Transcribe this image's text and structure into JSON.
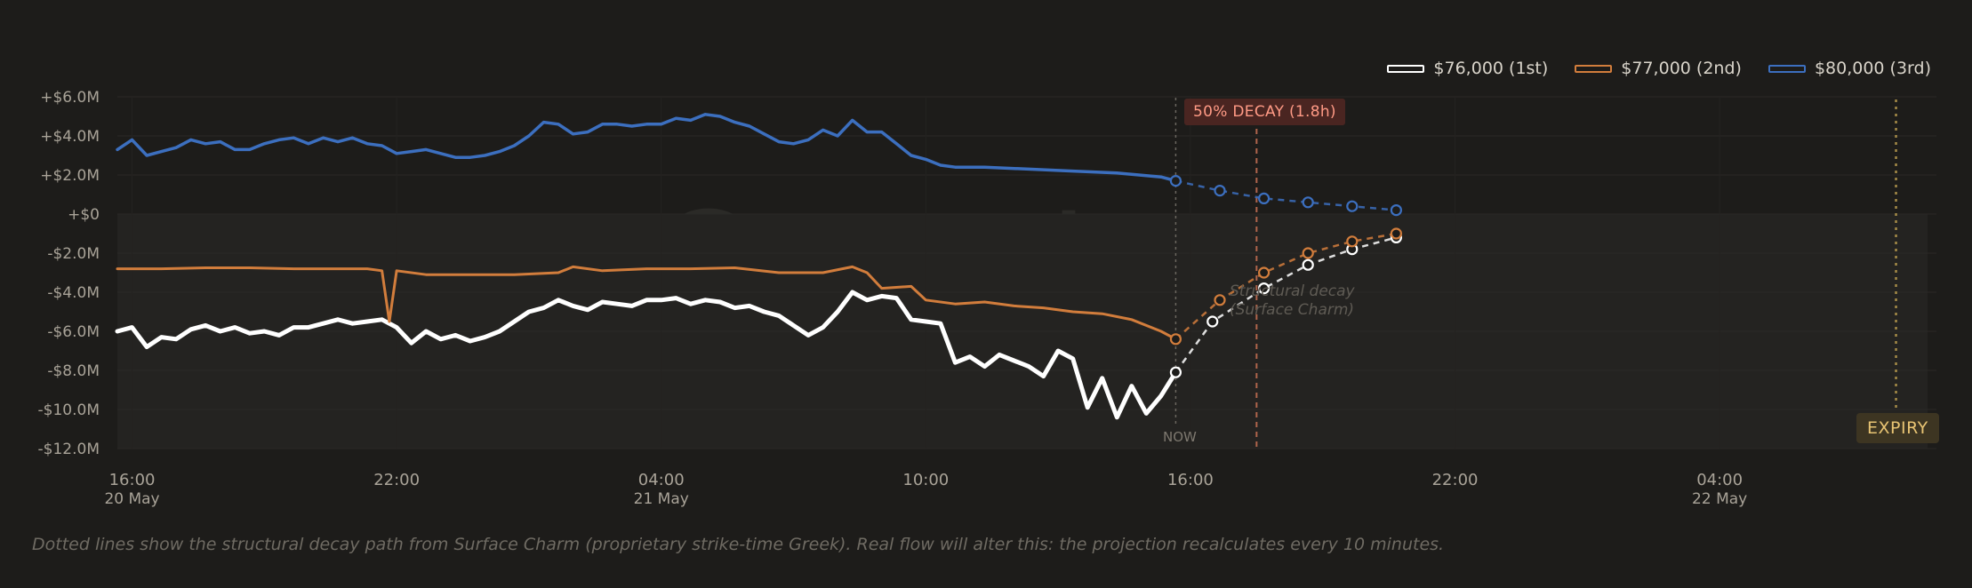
{
  "legend": {
    "items": [
      {
        "label": "$76,000 (1st)",
        "color": "#ffffff"
      },
      {
        "label": "$77,000 (2nd)",
        "color": "#d27d3c"
      },
      {
        "label": "$80,000 (3rd)",
        "color": "#3c6fbf"
      }
    ]
  },
  "watermark": "Cayø Largo",
  "annotations": {
    "decay_badge": "50% DECAY (1.8h)",
    "expiry_badge": "EXPIRY",
    "now_label": "NOW",
    "decay_note_line1": "Structural decay",
    "decay_note_line2": "(Surface Charm)"
  },
  "footnote": "Dotted lines show the structural decay path from Surface Charm (proprietary strike-time Greek). Real flow will alter this: the projection recalculates every 10 minutes.",
  "chart_data": {
    "type": "line",
    "title": "",
    "xlabel": "",
    "ylabel": "",
    "xlim": [
      "2024-05-20 15:40",
      "2024-05-22 10:40"
    ],
    "ylim": [
      -12,
      6
    ],
    "y_unit": "$M",
    "y_ticks": [
      {
        "value": 6,
        "label": "+$6.0M"
      },
      {
        "value": 4,
        "label": "+$4.0M"
      },
      {
        "value": 2,
        "label": "+$2.0M"
      },
      {
        "value": 0,
        "label": "+$0"
      },
      {
        "value": -2,
        "label": "-$2.0M"
      },
      {
        "value": -4,
        "label": "-$4.0M"
      },
      {
        "value": -6,
        "label": "-$6.0M"
      },
      {
        "value": -8,
        "label": "-$8.0M"
      },
      {
        "value": -10,
        "label": "-$10.0M"
      },
      {
        "value": -12,
        "label": "-$12.0M"
      }
    ],
    "x_ticks": [
      {
        "t": "2024-05-20 16:00",
        "label": "16:00",
        "sub": "20 May"
      },
      {
        "t": "2024-05-20 22:00",
        "label": "22:00",
        "sub": ""
      },
      {
        "t": "2024-05-21 04:00",
        "label": "04:00",
        "sub": "21 May"
      },
      {
        "t": "2024-05-21 10:00",
        "label": "10:00",
        "sub": ""
      },
      {
        "t": "2024-05-21 16:00",
        "label": "16:00",
        "sub": ""
      },
      {
        "t": "2024-05-21 22:00",
        "label": "22:00",
        "sub": ""
      },
      {
        "t": "2024-05-22 04:00",
        "label": "04:00",
        "sub": "22 May"
      }
    ],
    "markers": {
      "now": "2024-05-21 15:40",
      "half_decay": "2024-05-21 17:30",
      "expiry": "2024-05-22 08:00"
    },
    "grid": true,
    "legend_position": "top-right",
    "series": [
      {
        "name": "$76,000 (1st)",
        "color": "#ffffff",
        "points": [
          [
            "2024-05-20 15:40",
            -6.0
          ],
          [
            "2024-05-20 16:00",
            -5.8
          ],
          [
            "2024-05-20 16:20",
            -6.8
          ],
          [
            "2024-05-20 16:40",
            -6.3
          ],
          [
            "2024-05-20 17:00",
            -6.4
          ],
          [
            "2024-05-20 17:20",
            -5.9
          ],
          [
            "2024-05-20 17:40",
            -5.7
          ],
          [
            "2024-05-20 18:00",
            -6.0
          ],
          [
            "2024-05-20 18:20",
            -5.8
          ],
          [
            "2024-05-20 18:40",
            -6.1
          ],
          [
            "2024-05-20 19:00",
            -6.0
          ],
          [
            "2024-05-20 19:20",
            -6.2
          ],
          [
            "2024-05-20 19:40",
            -5.8
          ],
          [
            "2024-05-20 20:00",
            -5.8
          ],
          [
            "2024-05-20 20:20",
            -5.6
          ],
          [
            "2024-05-20 20:40",
            -5.4
          ],
          [
            "2024-05-20 21:00",
            -5.6
          ],
          [
            "2024-05-20 21:20",
            -5.5
          ],
          [
            "2024-05-20 21:40",
            -5.4
          ],
          [
            "2024-05-20 22:00",
            -5.8
          ],
          [
            "2024-05-20 22:20",
            -6.6
          ],
          [
            "2024-05-20 22:40",
            -6.0
          ],
          [
            "2024-05-20 23:00",
            -6.4
          ],
          [
            "2024-05-20 23:20",
            -6.2
          ],
          [
            "2024-05-20 23:40",
            -6.5
          ],
          [
            "2024-05-21 00:00",
            -6.3
          ],
          [
            "2024-05-21 00:20",
            -6.0
          ],
          [
            "2024-05-21 00:40",
            -5.5
          ],
          [
            "2024-05-21 01:00",
            -5.0
          ],
          [
            "2024-05-21 01:20",
            -4.8
          ],
          [
            "2024-05-21 01:40",
            -4.4
          ],
          [
            "2024-05-21 02:00",
            -4.7
          ],
          [
            "2024-05-21 02:20",
            -4.9
          ],
          [
            "2024-05-21 02:40",
            -4.5
          ],
          [
            "2024-05-21 03:00",
            -4.6
          ],
          [
            "2024-05-21 03:20",
            -4.7
          ],
          [
            "2024-05-21 03:40",
            -4.4
          ],
          [
            "2024-05-21 04:00",
            -4.4
          ],
          [
            "2024-05-21 04:20",
            -4.3
          ],
          [
            "2024-05-21 04:40",
            -4.6
          ],
          [
            "2024-05-21 05:00",
            -4.4
          ],
          [
            "2024-05-21 05:20",
            -4.5
          ],
          [
            "2024-05-21 05:40",
            -4.8
          ],
          [
            "2024-05-21 06:00",
            -4.7
          ],
          [
            "2024-05-21 06:20",
            -5.0
          ],
          [
            "2024-05-21 06:40",
            -5.2
          ],
          [
            "2024-05-21 07:00",
            -5.7
          ],
          [
            "2024-05-21 07:20",
            -6.2
          ],
          [
            "2024-05-21 07:40",
            -5.8
          ],
          [
            "2024-05-21 08:00",
            -5.0
          ],
          [
            "2024-05-21 08:20",
            -4.0
          ],
          [
            "2024-05-21 08:40",
            -4.4
          ],
          [
            "2024-05-21 09:00",
            -4.2
          ],
          [
            "2024-05-21 09:20",
            -4.3
          ],
          [
            "2024-05-21 09:40",
            -5.4
          ],
          [
            "2024-05-21 10:00",
            -5.5
          ],
          [
            "2024-05-21 10:20",
            -5.6
          ],
          [
            "2024-05-21 10:40",
            -7.6
          ],
          [
            "2024-05-21 11:00",
            -7.3
          ],
          [
            "2024-05-21 11:20",
            -7.8
          ],
          [
            "2024-05-21 11:40",
            -7.2
          ],
          [
            "2024-05-21 12:00",
            -7.5
          ],
          [
            "2024-05-21 12:20",
            -7.8
          ],
          [
            "2024-05-21 12:40",
            -8.3
          ],
          [
            "2024-05-21 13:00",
            -7.0
          ],
          [
            "2024-05-21 13:20",
            -7.4
          ],
          [
            "2024-05-21 13:40",
            -9.9
          ],
          [
            "2024-05-21 14:00",
            -8.4
          ],
          [
            "2024-05-21 14:20",
            -10.4
          ],
          [
            "2024-05-21 14:40",
            -8.8
          ],
          [
            "2024-05-21 15:00",
            -10.2
          ],
          [
            "2024-05-21 15:20",
            -9.3
          ],
          [
            "2024-05-21 15:40",
            -8.1
          ]
        ],
        "projection": [
          [
            "2024-05-21 15:40",
            -8.1
          ],
          [
            "2024-05-21 16:30",
            -5.5
          ],
          [
            "2024-05-21 17:40",
            -3.8
          ],
          [
            "2024-05-21 18:40",
            -2.6
          ],
          [
            "2024-05-21 19:40",
            -1.8
          ],
          [
            "2024-05-21 20:40",
            -1.2
          ]
        ]
      },
      {
        "name": "$77,000 (2nd)",
        "color": "#d27d3c",
        "points": [
          [
            "2024-05-20 15:40",
            -2.8
          ],
          [
            "2024-05-20 16:40",
            -2.8
          ],
          [
            "2024-05-20 17:40",
            -2.75
          ],
          [
            "2024-05-20 18:40",
            -2.75
          ],
          [
            "2024-05-20 19:40",
            -2.8
          ],
          [
            "2024-05-20 20:40",
            -2.8
          ],
          [
            "2024-05-20 21:20",
            -2.8
          ],
          [
            "2024-05-20 21:40",
            -2.9
          ],
          [
            "2024-05-20 21:50",
            -5.5
          ],
          [
            "2024-05-20 22:00",
            -2.9
          ],
          [
            "2024-05-20 22:40",
            -3.1
          ],
          [
            "2024-05-20 23:40",
            -3.1
          ],
          [
            "2024-05-21 00:40",
            -3.1
          ],
          [
            "2024-05-21 01:40",
            -3.0
          ],
          [
            "2024-05-21 02:00",
            -2.7
          ],
          [
            "2024-05-21 02:40",
            -2.9
          ],
          [
            "2024-05-21 03:40",
            -2.8
          ],
          [
            "2024-05-21 04:40",
            -2.8
          ],
          [
            "2024-05-21 05:40",
            -2.75
          ],
          [
            "2024-05-21 06:40",
            -3.0
          ],
          [
            "2024-05-21 07:40",
            -3.0
          ],
          [
            "2024-05-21 08:20",
            -2.7
          ],
          [
            "2024-05-21 08:40",
            -3.0
          ],
          [
            "2024-05-21 09:00",
            -3.8
          ],
          [
            "2024-05-21 09:40",
            -3.7
          ],
          [
            "2024-05-21 10:00",
            -4.4
          ],
          [
            "2024-05-21 10:40",
            -4.6
          ],
          [
            "2024-05-21 11:20",
            -4.5
          ],
          [
            "2024-05-21 12:00",
            -4.7
          ],
          [
            "2024-05-21 12:40",
            -4.8
          ],
          [
            "2024-05-21 13:20",
            -5.0
          ],
          [
            "2024-05-21 14:00",
            -5.1
          ],
          [
            "2024-05-21 14:40",
            -5.4
          ],
          [
            "2024-05-21 15:20",
            -6.0
          ],
          [
            "2024-05-21 15:40",
            -6.4
          ]
        ],
        "projection": [
          [
            "2024-05-21 15:40",
            -6.4
          ],
          [
            "2024-05-21 16:40",
            -4.4
          ],
          [
            "2024-05-21 17:40",
            -3.0
          ],
          [
            "2024-05-21 18:40",
            -2.0
          ],
          [
            "2024-05-21 19:40",
            -1.4
          ],
          [
            "2024-05-21 20:40",
            -1.0
          ]
        ]
      },
      {
        "name": "$80,000 (3rd)",
        "color": "#3c6fbf",
        "points": [
          [
            "2024-05-20 15:40",
            3.3
          ],
          [
            "2024-05-20 16:00",
            3.8
          ],
          [
            "2024-05-20 16:20",
            3.0
          ],
          [
            "2024-05-20 16:40",
            3.2
          ],
          [
            "2024-05-20 17:00",
            3.4
          ],
          [
            "2024-05-20 17:20",
            3.8
          ],
          [
            "2024-05-20 17:40",
            3.6
          ],
          [
            "2024-05-20 18:00",
            3.7
          ],
          [
            "2024-05-20 18:20",
            3.3
          ],
          [
            "2024-05-20 18:40",
            3.3
          ],
          [
            "2024-05-20 19:00",
            3.6
          ],
          [
            "2024-05-20 19:20",
            3.8
          ],
          [
            "2024-05-20 19:40",
            3.9
          ],
          [
            "2024-05-20 20:00",
            3.6
          ],
          [
            "2024-05-20 20:20",
            3.9
          ],
          [
            "2024-05-20 20:40",
            3.7
          ],
          [
            "2024-05-20 21:00",
            3.9
          ],
          [
            "2024-05-20 21:20",
            3.6
          ],
          [
            "2024-05-20 21:40",
            3.5
          ],
          [
            "2024-05-20 22:00",
            3.1
          ],
          [
            "2024-05-20 22:20",
            3.2
          ],
          [
            "2024-05-20 22:40",
            3.3
          ],
          [
            "2024-05-20 23:00",
            3.1
          ],
          [
            "2024-05-20 23:20",
            2.9
          ],
          [
            "2024-05-20 23:40",
            2.9
          ],
          [
            "2024-05-21 00:00",
            3.0
          ],
          [
            "2024-05-21 00:20",
            3.2
          ],
          [
            "2024-05-21 00:40",
            3.5
          ],
          [
            "2024-05-21 01:00",
            4.0
          ],
          [
            "2024-05-21 01:20",
            4.7
          ],
          [
            "2024-05-21 01:40",
            4.6
          ],
          [
            "2024-05-21 02:00",
            4.1
          ],
          [
            "2024-05-21 02:20",
            4.2
          ],
          [
            "2024-05-21 02:40",
            4.6
          ],
          [
            "2024-05-21 03:00",
            4.6
          ],
          [
            "2024-05-21 03:20",
            4.5
          ],
          [
            "2024-05-21 03:40",
            4.6
          ],
          [
            "2024-05-21 04:00",
            4.6
          ],
          [
            "2024-05-21 04:20",
            4.9
          ],
          [
            "2024-05-21 04:40",
            4.8
          ],
          [
            "2024-05-21 05:00",
            5.1
          ],
          [
            "2024-05-21 05:20",
            5.0
          ],
          [
            "2024-05-21 05:40",
            4.7
          ],
          [
            "2024-05-21 06:00",
            4.5
          ],
          [
            "2024-05-21 06:20",
            4.1
          ],
          [
            "2024-05-21 06:40",
            3.7
          ],
          [
            "2024-05-21 07:00",
            3.6
          ],
          [
            "2024-05-21 07:20",
            3.8
          ],
          [
            "2024-05-21 07:40",
            4.3
          ],
          [
            "2024-05-21 08:00",
            4.0
          ],
          [
            "2024-05-21 08:20",
            4.8
          ],
          [
            "2024-05-21 08:40",
            4.2
          ],
          [
            "2024-05-21 09:00",
            4.2
          ],
          [
            "2024-05-21 09:20",
            3.6
          ],
          [
            "2024-05-21 09:40",
            3.0
          ],
          [
            "2024-05-21 10:00",
            2.8
          ],
          [
            "2024-05-21 10:20",
            2.5
          ],
          [
            "2024-05-21 10:40",
            2.4
          ],
          [
            "2024-05-21 11:20",
            2.4
          ],
          [
            "2024-05-21 12:20",
            2.3
          ],
          [
            "2024-05-21 13:20",
            2.2
          ],
          [
            "2024-05-21 14:20",
            2.1
          ],
          [
            "2024-05-21 15:20",
            1.9
          ],
          [
            "2024-05-21 15:40",
            1.7
          ]
        ],
        "projection": [
          [
            "2024-05-21 15:40",
            1.7
          ],
          [
            "2024-05-21 16:40",
            1.2
          ],
          [
            "2024-05-21 17:40",
            0.8
          ],
          [
            "2024-05-21 18:40",
            0.6
          ],
          [
            "2024-05-21 19:40",
            0.4
          ],
          [
            "2024-05-21 20:40",
            0.2
          ]
        ]
      }
    ]
  }
}
